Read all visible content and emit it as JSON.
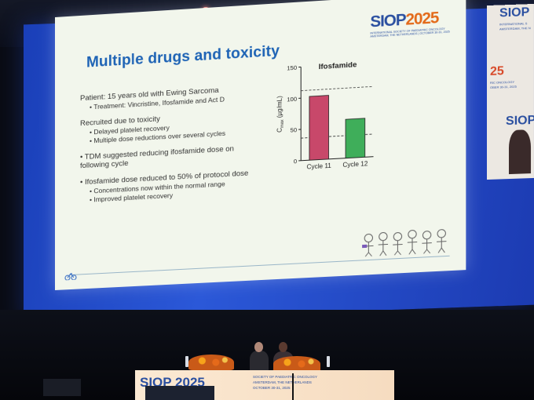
{
  "slide": {
    "title": "Multiple drugs and toxicity",
    "bullets": [
      {
        "text": "Patient: 15 years old with Ewing Sarcoma",
        "subs": [
          "Treatment: Vincristine, Ifosfamide and Act D"
        ]
      },
      {
        "text": "Recruited due to toxicity",
        "subs": [
          "Delayed platelet recovery",
          "Multiple dose reductions over several cycles"
        ]
      },
      {
        "text": "TDM suggested reducing ifosfamide dose on following cycle",
        "subs": []
      },
      {
        "text": "Ifosfamide dose reduced to 50% of protocol dose",
        "subs": [
          "Concentrations now within the normal range",
          "Improved platelet recovery"
        ]
      }
    ]
  },
  "logo": {
    "main": "SIOP",
    "year": "2025",
    "sub1": "INTERNATIONAL SOCIETY OF PAEDIATRIC ONCOLOGY",
    "sub2": "AMSTERDAM, THE NETHERLANDS | OCTOBER 30-31, 2025"
  },
  "side_screen": {
    "year": "25",
    "line1": "INTERNATIONAL S",
    "line2": "AMSTERDAM, THE N",
    "line3": "RIC ONCOLOGY",
    "line4": "OBER 30-31, 2025",
    "logo2": "SIOP"
  },
  "table_banner": {
    "logo": "SIOP 2025",
    "text1": "SOCIETY OF PAEDIATRIC ONCOLOGY",
    "text2": "AMSTERDAM, THE NETHERLANDS",
    "text3": "OCTOBER 30-31, 2025"
  },
  "chart_data": {
    "type": "bar",
    "title": "Ifosfamide",
    "categories": [
      "Cycle 11",
      "Cycle 12"
    ],
    "values": [
      102,
      62
    ],
    "ylabel_main": "C",
    "ylabel_sub": "max",
    "ylabel_unit": " (µg/mL)",
    "ylim": [
      0,
      150
    ],
    "yticks": [
      "0",
      "50",
      "100",
      "150"
    ],
    "reference_lines": [
      36,
      112
    ],
    "colors": [
      "#c8486a",
      "#3fae5a"
    ],
    "grid": false
  }
}
